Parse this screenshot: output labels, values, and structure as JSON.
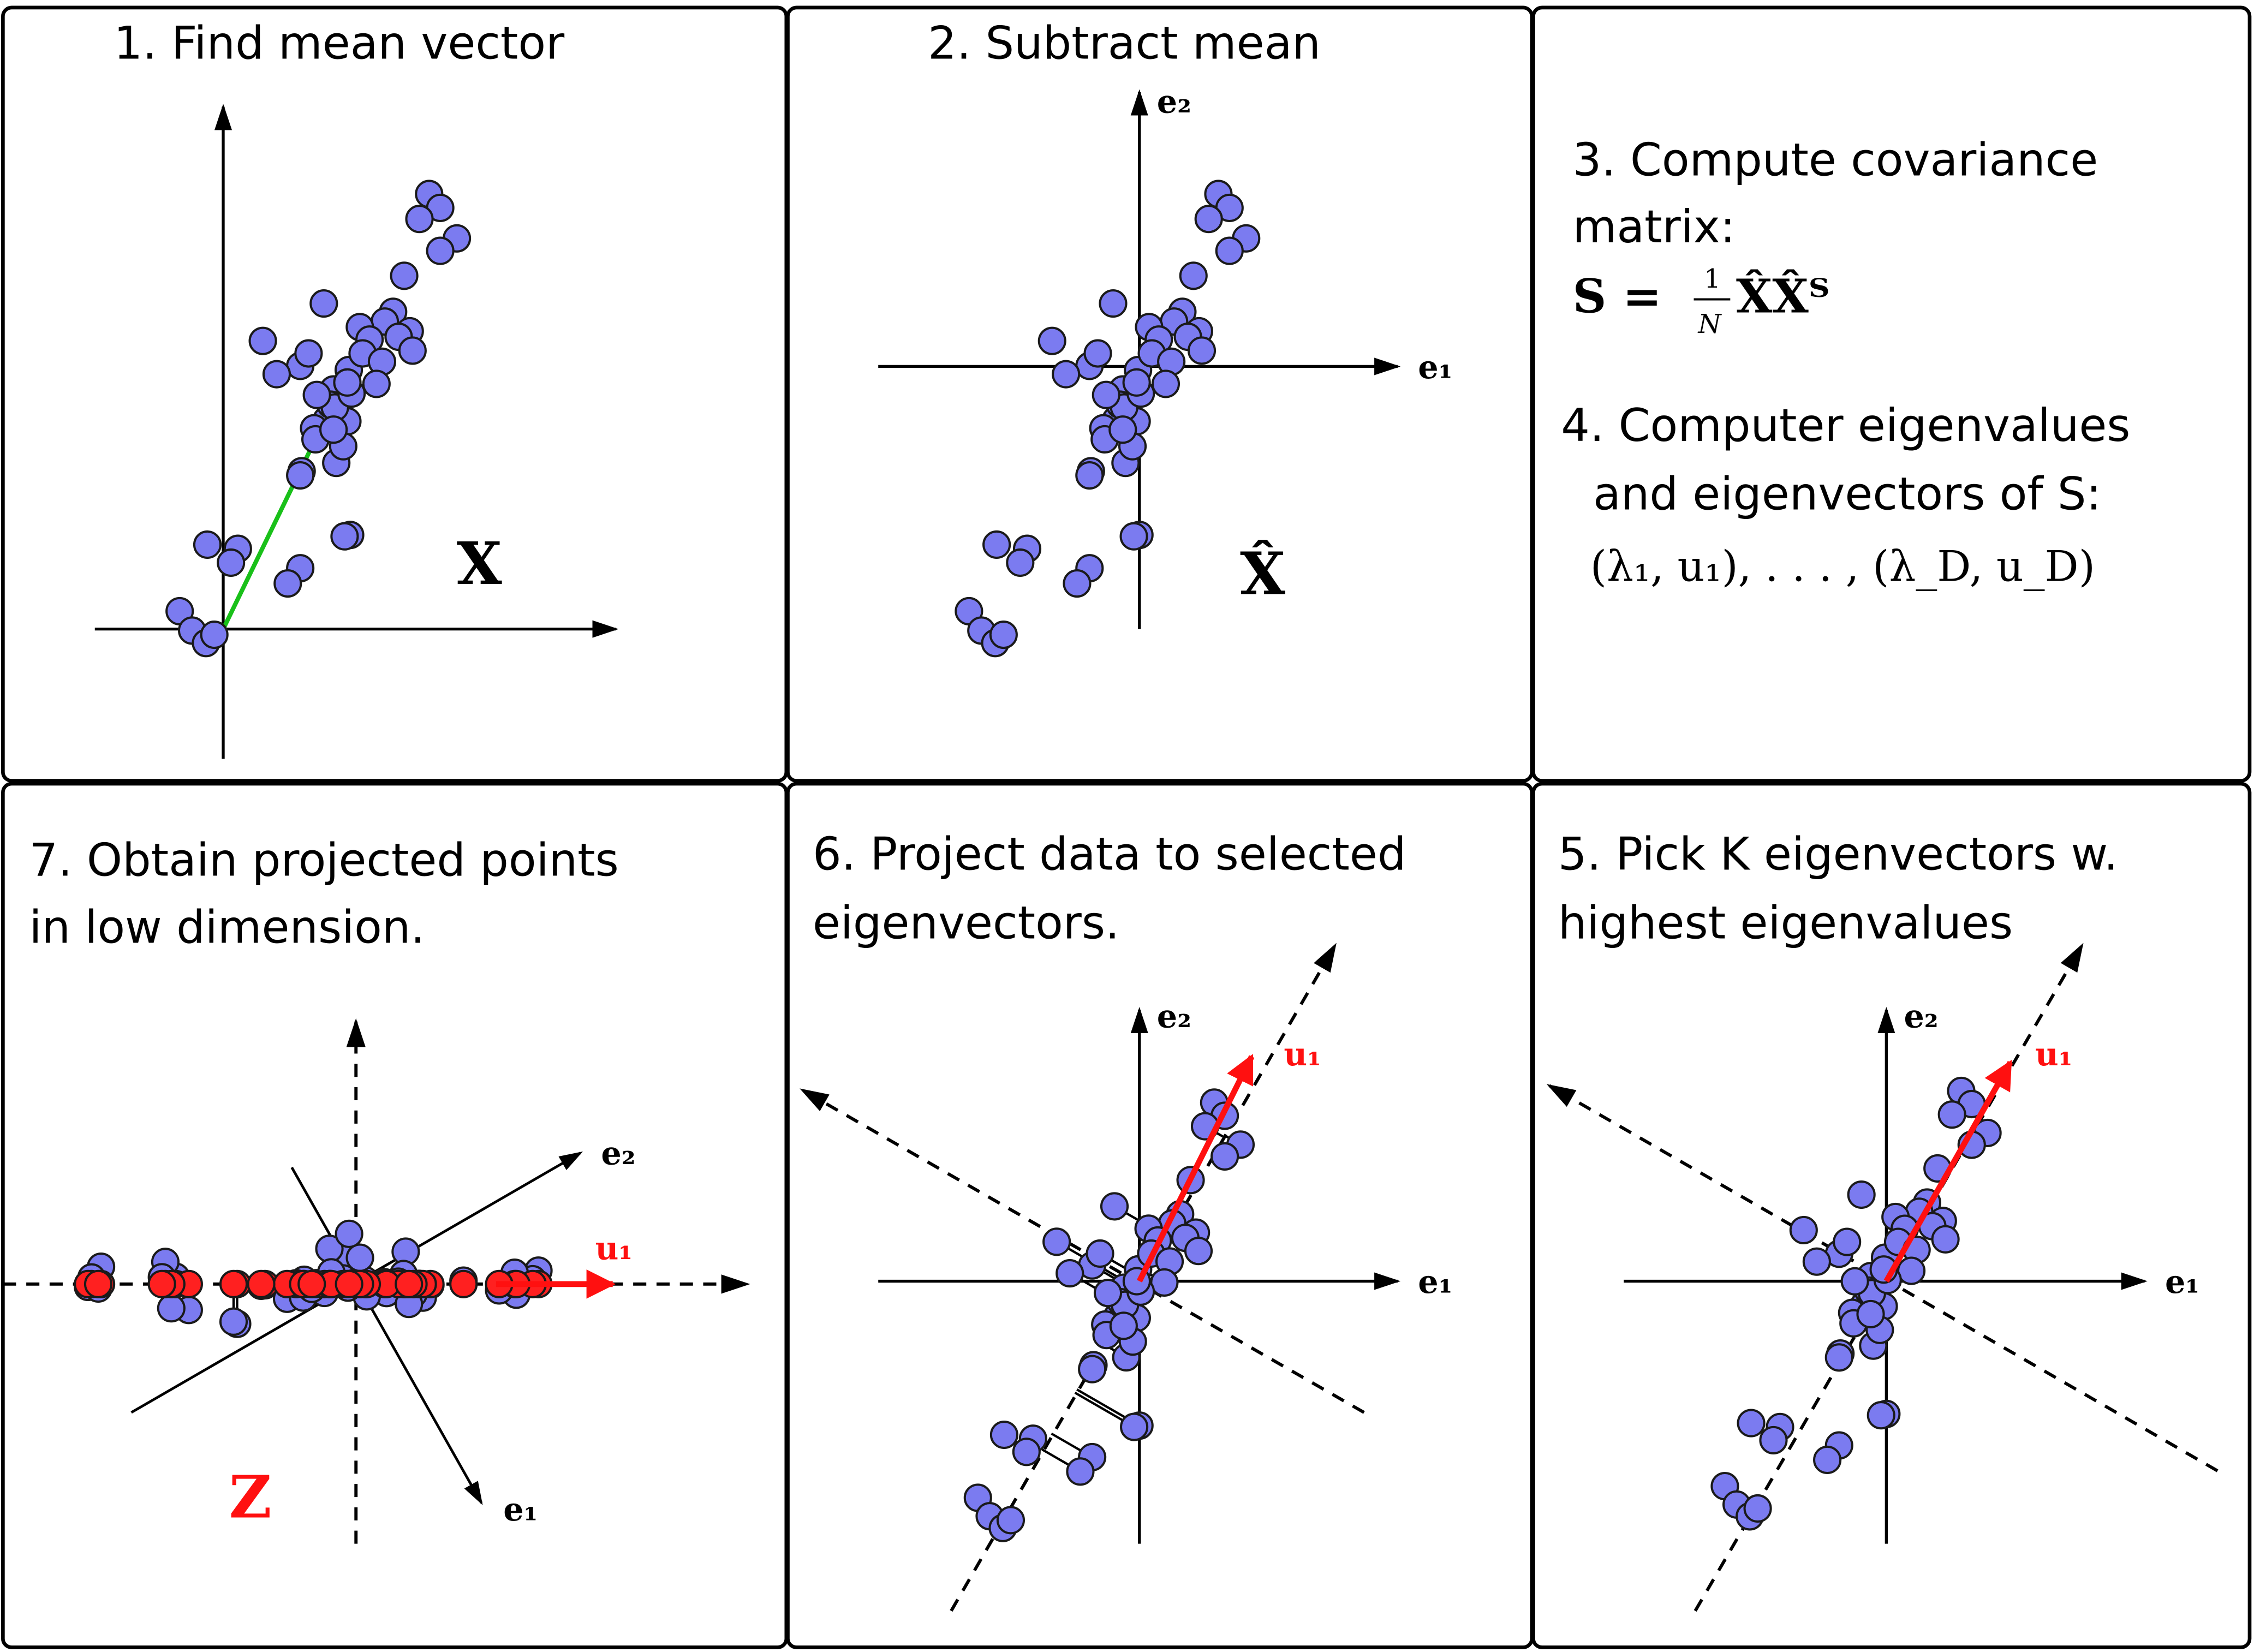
{
  "panels": {
    "p1": {
      "title": "1.  Find mean vector",
      "symbol": "X"
    },
    "p2": {
      "title": "2.  Subtract mean",
      "symbol": "X̂",
      "axis_e1": "e₁",
      "axis_e2": "e₂"
    },
    "p3": {
      "line1": "3.  Compute covariance",
      "line2": "matrix:",
      "formula_lhs": "S =",
      "formula_num": "1",
      "formula_den": "N",
      "formula_rhs": "X̂X̂ᵀ",
      "line4": "4.  Computer eigenvalues",
      "line5": "and eigenvectors of S:",
      "line6": "(λ₁, u₁), . . . , (λ_D, u_D)"
    },
    "p5": {
      "title_line1": "5.  Pick K eigenvectors w.",
      "title_line2": "highest eigenvalues",
      "axis_e1": "e₁",
      "axis_e2": "e₂",
      "vector_label": "u₁"
    },
    "p6": {
      "title_line1": "6.  Project data to selected",
      "title_line2": "eigenvectors.",
      "axis_e1": "e₁",
      "axis_e2": "e₂",
      "vector_label": "u₁"
    },
    "p7": {
      "title_line1": "7.  Obtain projected points",
      "title_line2": "in low dimension.",
      "axis_e1": "e₁",
      "axis_e2": "e₂",
      "vector_label": "u₁",
      "symbol": "Z"
    }
  },
  "colors": {
    "point_fill": "#7b7bf0",
    "point_stroke": "#1a1a1a",
    "projected_fill": "#ff2020",
    "mean_arrow": "#19c019",
    "eigen_arrow": "#ff1010",
    "border": "#000000"
  },
  "icons": {
    "data-point": "circle",
    "arrow": "line-with-arrowhead"
  }
}
